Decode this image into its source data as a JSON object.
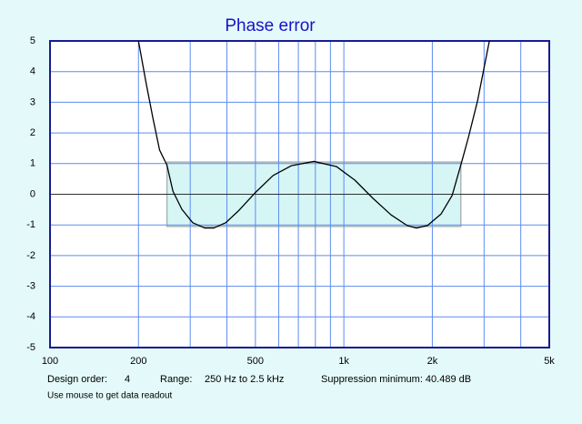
{
  "chart_data": {
    "type": "line",
    "title": "Phase error",
    "x": [
      200,
      212,
      224,
      236,
      250,
      262,
      281,
      306,
      336,
      361,
      396,
      437,
      498,
      574,
      662,
      791,
      945,
      1090,
      1255,
      1446,
      1642,
      1766,
      1925,
      2143,
      2336,
      2500,
      2658,
      2854,
      3127
    ],
    "series": [
      {
        "color": "#000000",
        "values": [
          5,
          3.66,
          2.48,
          1.44,
          0.95,
          0.1,
          -0.49,
          -0.93,
          -1.1,
          -1.1,
          -0.93,
          -0.55,
          0.04,
          0.61,
          0.93,
          1.07,
          0.9,
          0.46,
          -0.13,
          -0.67,
          -1.02,
          -1.1,
          -1.02,
          -0.64,
          -0.04,
          0.95,
          1.88,
          3.07,
          5
        ]
      }
    ],
    "xscale": "log",
    "xlim": [
      100,
      5000
    ],
    "xticks": [
      100,
      200,
      500,
      {
        "value": 1000,
        "label": "1k"
      },
      {
        "value": 2000,
        "label": "2k"
      },
      {
        "value": 5000,
        "label": "5k"
      }
    ],
    "xgrid_minor": [
      300,
      400,
      600,
      700,
      800,
      900,
      3000,
      4000
    ],
    "ylim": [
      -5,
      5
    ],
    "yticks": [
      -5,
      -4,
      -3,
      -2,
      -1,
      0,
      1,
      2,
      3,
      4,
      5
    ],
    "grid": true,
    "grid_color": "#5c8cf0",
    "highlight": {
      "x": [
        250,
        2500
      ],
      "y": [
        -1.05,
        1.05
      ],
      "color": "#d6f6f6"
    },
    "footer": {
      "order_label": "Design order:",
      "order": "4",
      "range_label": "Range:",
      "range": "250 Hz to  2.5 kHz",
      "suppression": "Suppression minimum: 40.489 dB",
      "hint": "Use mouse to get data readout"
    }
  }
}
